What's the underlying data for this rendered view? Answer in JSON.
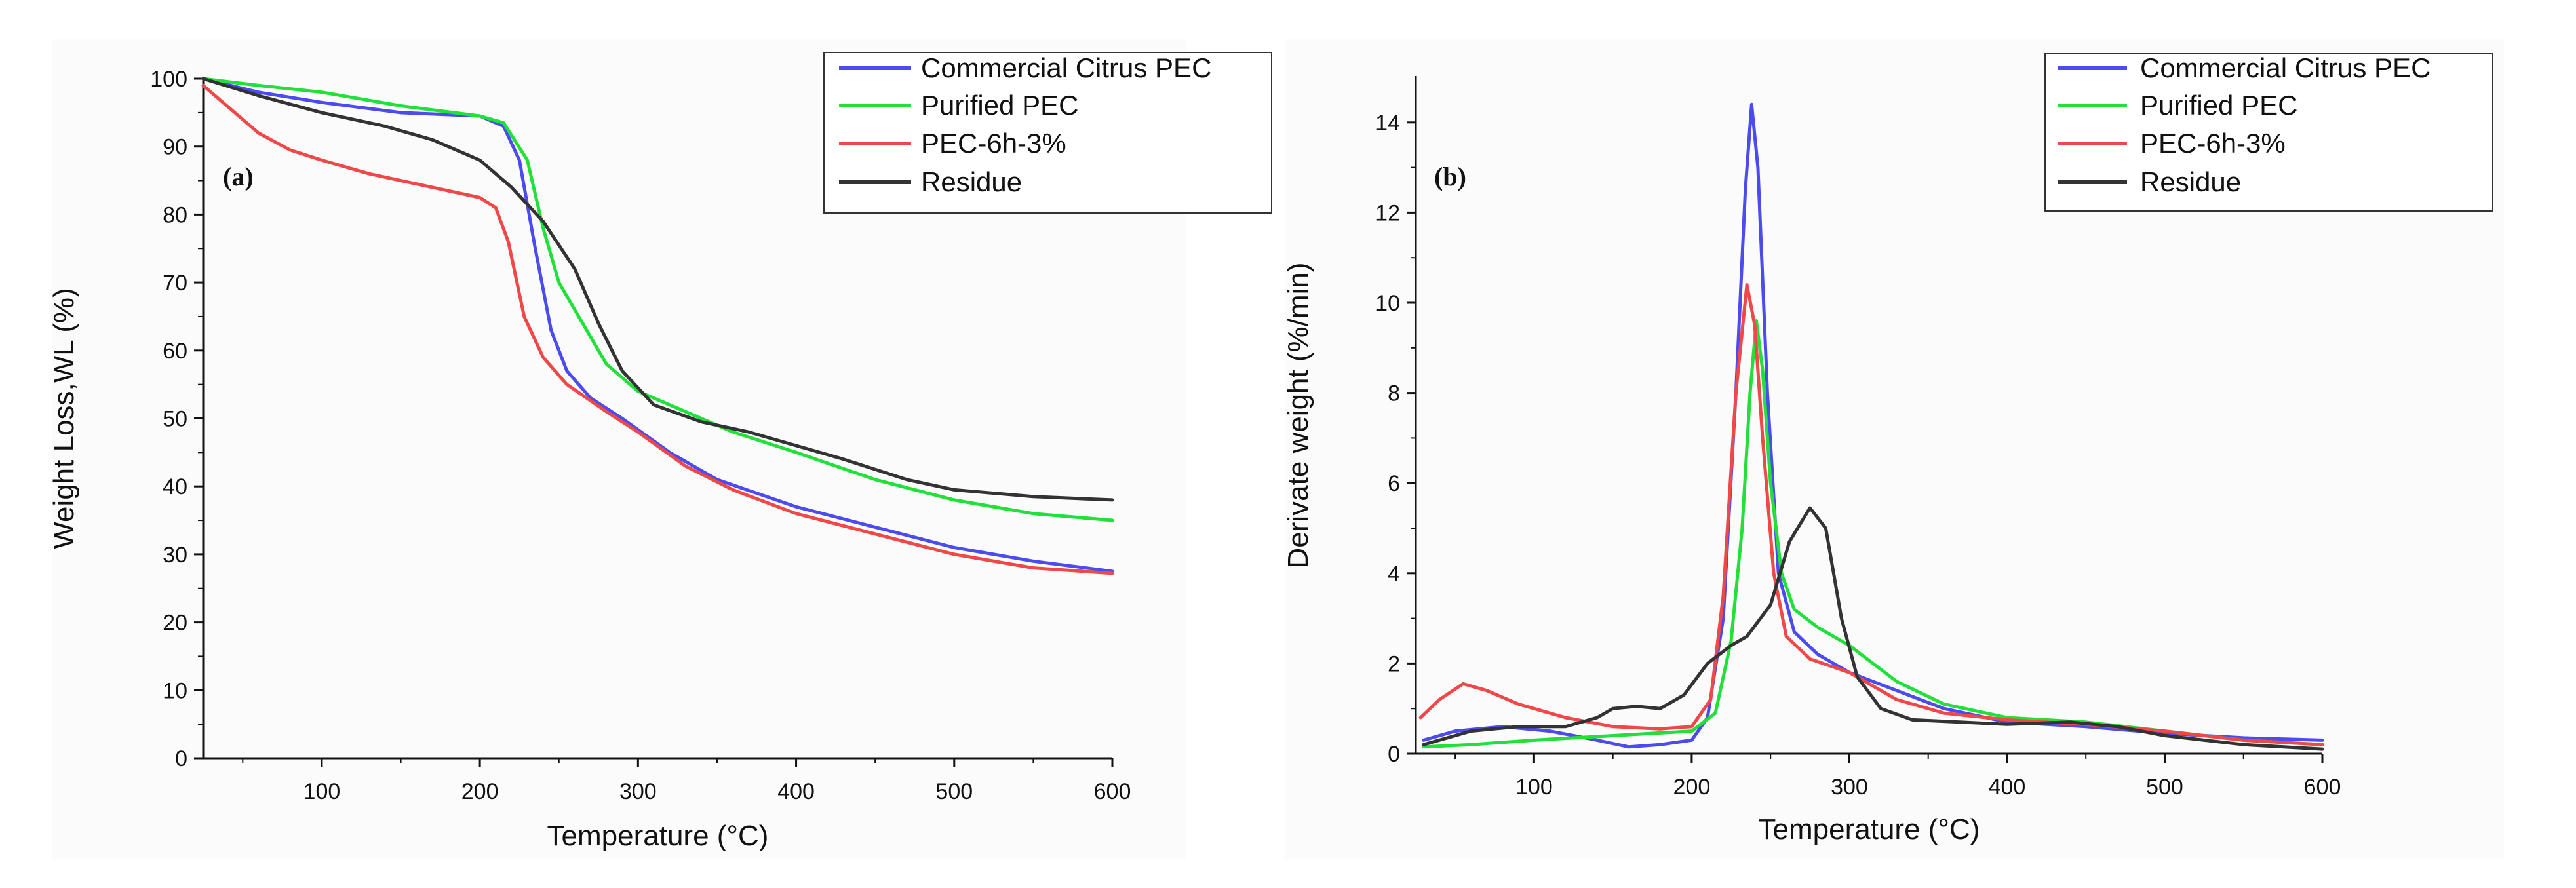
{
  "chart_data": [
    {
      "type": "line",
      "panel": "(a)",
      "xlabel": "Temperature (°C)",
      "ylabel": "Weight Loss,WL (%)",
      "xlim": [
        25,
        600
      ],
      "ylim": [
        0,
        100
      ],
      "xticks": [
        100,
        200,
        300,
        400,
        500,
        600
      ],
      "yticks": [
        0,
        10,
        20,
        30,
        40,
        50,
        60,
        70,
        80,
        90,
        100
      ],
      "legend_position": "top-right",
      "series": [
        {
          "name": "Commercial Citrus PEC",
          "color": "#4b4bf0",
          "points": [
            [
              25,
              100
            ],
            [
              60,
              98
            ],
            [
              100,
              96.5
            ],
            [
              150,
              95
            ],
            [
              200,
              94.5
            ],
            [
              215,
              93
            ],
            [
              225,
              88
            ],
            [
              235,
              75
            ],
            [
              245,
              63
            ],
            [
              255,
              57
            ],
            [
              270,
              53
            ],
            [
              290,
              50
            ],
            [
              320,
              45
            ],
            [
              350,
              41
            ],
            [
              400,
              37
            ],
            [
              450,
              34
            ],
            [
              500,
              31
            ],
            [
              550,
              29
            ],
            [
              600,
              27.5
            ]
          ]
        },
        {
          "name": "Purified PEC",
          "color": "#22e03a",
          "points": [
            [
              25,
              100
            ],
            [
              60,
              99
            ],
            [
              100,
              98
            ],
            [
              150,
              96
            ],
            [
              200,
              94.5
            ],
            [
              215,
              93.5
            ],
            [
              230,
              88
            ],
            [
              240,
              78
            ],
            [
              250,
              70
            ],
            [
              265,
              64
            ],
            [
              280,
              58
            ],
            [
              300,
              54
            ],
            [
              330,
              51
            ],
            [
              360,
              48
            ],
            [
              400,
              45
            ],
            [
              450,
              41
            ],
            [
              500,
              38
            ],
            [
              550,
              36
            ],
            [
              600,
              35
            ]
          ]
        },
        {
          "name": "PEC-6h-3%",
          "color": "#f04848",
          "points": [
            [
              25,
              99
            ],
            [
              40,
              96
            ],
            [
              60,
              92
            ],
            [
              80,
              89.5
            ],
            [
              100,
              88
            ],
            [
              130,
              86
            ],
            [
              170,
              84
            ],
            [
              200,
              82.5
            ],
            [
              210,
              81
            ],
            [
              218,
              76
            ],
            [
              228,
              65
            ],
            [
              240,
              59
            ],
            [
              255,
              55
            ],
            [
              280,
              51
            ],
            [
              300,
              48
            ],
            [
              330,
              43
            ],
            [
              360,
              39.5
            ],
            [
              400,
              36
            ],
            [
              450,
              33
            ],
            [
              500,
              30
            ],
            [
              550,
              28
            ],
            [
              600,
              27.2
            ]
          ]
        },
        {
          "name": "Residue",
          "color": "#333333",
          "points": [
            [
              25,
              100
            ],
            [
              60,
              97.5
            ],
            [
              100,
              95
            ],
            [
              140,
              93
            ],
            [
              170,
              91
            ],
            [
              200,
              88
            ],
            [
              220,
              84
            ],
            [
              240,
              79
            ],
            [
              260,
              72
            ],
            [
              275,
              64
            ],
            [
              290,
              57
            ],
            [
              310,
              52
            ],
            [
              340,
              49.5
            ],
            [
              370,
              48
            ],
            [
              400,
              46
            ],
            [
              430,
              44
            ],
            [
              470,
              41
            ],
            [
              500,
              39.5
            ],
            [
              550,
              38.5
            ],
            [
              600,
              38
            ]
          ]
        }
      ]
    },
    {
      "type": "line",
      "panel": "(b)",
      "xlabel": "Temperature (°C)",
      "ylabel": "Derivate weight (%/min)",
      "xlim": [
        25,
        600
      ],
      "ylim": [
        0,
        15
      ],
      "xticks": [
        100,
        200,
        300,
        400,
        500,
        600
      ],
      "yticks": [
        0,
        2,
        4,
        6,
        8,
        10,
        12,
        14
      ],
      "legend_position": "top-right",
      "series": [
        {
          "name": "Commercial Citrus PEC",
          "color": "#4b4bf0",
          "points": [
            [
              30,
              0.3
            ],
            [
              50,
              0.5
            ],
            [
              80,
              0.6
            ],
            [
              110,
              0.5
            ],
            [
              140,
              0.3
            ],
            [
              160,
              0.15
            ],
            [
              180,
              0.2
            ],
            [
              200,
              0.3
            ],
            [
              210,
              0.8
            ],
            [
              220,
              3
            ],
            [
              228,
              8
            ],
            [
              234,
              12.5
            ],
            [
              238,
              14.4
            ],
            [
              242,
              13
            ],
            [
              248,
              8
            ],
            [
              255,
              4
            ],
            [
              265,
              2.7
            ],
            [
              280,
              2.2
            ],
            [
              300,
              1.8
            ],
            [
              330,
              1.4
            ],
            [
              360,
              1
            ],
            [
              400,
              0.7
            ],
            [
              450,
              0.6
            ],
            [
              500,
              0.45
            ],
            [
              550,
              0.35
            ],
            [
              600,
              0.3
            ]
          ]
        },
        {
          "name": "Purified PEC",
          "color": "#22e03a",
          "points": [
            [
              30,
              0.15
            ],
            [
              60,
              0.2
            ],
            [
              100,
              0.3
            ],
            [
              150,
              0.4
            ],
            [
              200,
              0.5
            ],
            [
              215,
              0.9
            ],
            [
              225,
              2.5
            ],
            [
              232,
              5
            ],
            [
              237,
              8
            ],
            [
              241,
              9.6
            ],
            [
              245,
              8.5
            ],
            [
              250,
              6
            ],
            [
              257,
              4
            ],
            [
              265,
              3.2
            ],
            [
              280,
              2.8
            ],
            [
              300,
              2.4
            ],
            [
              330,
              1.6
            ],
            [
              360,
              1.1
            ],
            [
              400,
              0.8
            ],
            [
              450,
              0.7
            ],
            [
              500,
              0.5
            ],
            [
              550,
              0.3
            ],
            [
              600,
              0.2
            ]
          ]
        },
        {
          "name": "PEC-6h-3%",
          "color": "#f04848",
          "points": [
            [
              28,
              0.8
            ],
            [
              40,
              1.2
            ],
            [
              55,
              1.55
            ],
            [
              70,
              1.4
            ],
            [
              90,
              1.1
            ],
            [
              120,
              0.8
            ],
            [
              150,
              0.6
            ],
            [
              180,
              0.55
            ],
            [
              200,
              0.6
            ],
            [
              212,
              1.2
            ],
            [
              220,
              3.5
            ],
            [
              228,
              8
            ],
            [
              235,
              10.4
            ],
            [
              240,
              9.5
            ],
            [
              245,
              7
            ],
            [
              252,
              4
            ],
            [
              260,
              2.6
            ],
            [
              275,
              2.1
            ],
            [
              300,
              1.8
            ],
            [
              330,
              1.2
            ],
            [
              360,
              0.9
            ],
            [
              400,
              0.75
            ],
            [
              450,
              0.65
            ],
            [
              500,
              0.5
            ],
            [
              550,
              0.3
            ],
            [
              600,
              0.2
            ]
          ]
        },
        {
          "name": "Residue",
          "color": "#333333",
          "points": [
            [
              30,
              0.2
            ],
            [
              60,
              0.5
            ],
            [
              90,
              0.6
            ],
            [
              120,
              0.6
            ],
            [
              140,
              0.8
            ],
            [
              150,
              1
            ],
            [
              165,
              1.05
            ],
            [
              180,
              1
            ],
            [
              195,
              1.3
            ],
            [
              210,
              2
            ],
            [
              225,
              2.4
            ],
            [
              235,
              2.6
            ],
            [
              250,
              3.3
            ],
            [
              262,
              4.7
            ],
            [
              275,
              5.45
            ],
            [
              285,
              5
            ],
            [
              295,
              3
            ],
            [
              305,
              1.7
            ],
            [
              320,
              1
            ],
            [
              340,
              0.75
            ],
            [
              370,
              0.7
            ],
            [
              400,
              0.65
            ],
            [
              440,
              0.7
            ],
            [
              470,
              0.6
            ],
            [
              500,
              0.4
            ],
            [
              550,
              0.2
            ],
            [
              600,
              0.1
            ]
          ]
        }
      ]
    }
  ]
}
